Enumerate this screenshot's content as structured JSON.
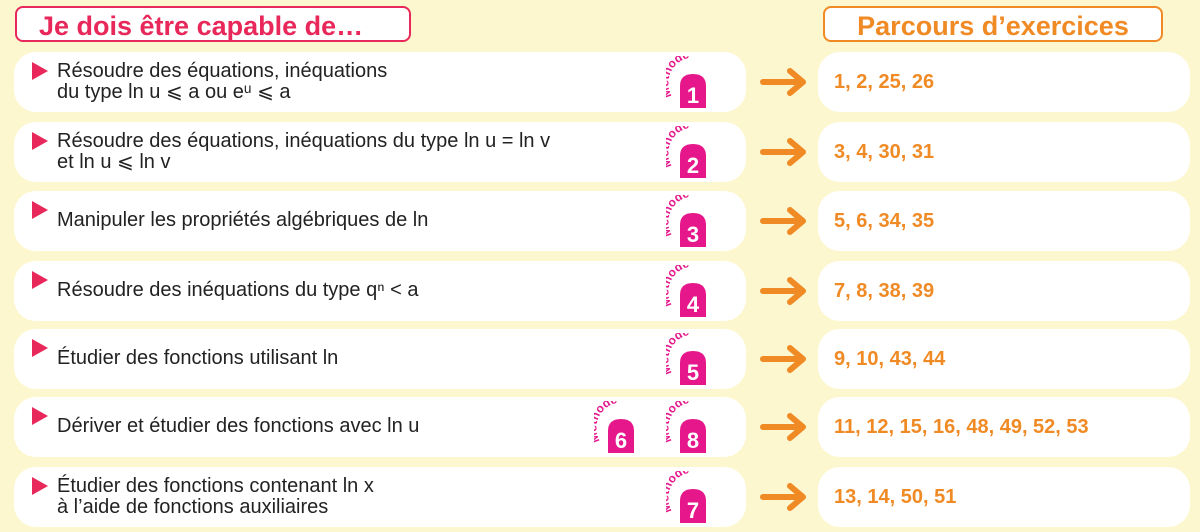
{
  "header": {
    "left_title": "Je dois être capable de…",
    "right_title": "Parcours d’exercices"
  },
  "method_label": "Méthode",
  "colors": {
    "pink": "#e8285a",
    "magenta": "#e5178b",
    "orange": "#f08a25",
    "background": "#fdf7cf"
  },
  "rows": [
    {
      "line1": "Résoudre des équations, inéquations",
      "line2": "du type ln u ⩽ a ou eᵘ ⩽ a",
      "methods": [
        "1"
      ],
      "exercises": "1, 2, 25, 26"
    },
    {
      "line1": "Résoudre des équations, inéquations du type ln u = ln v",
      "line2": "et ln u ⩽ ln v",
      "methods": [
        "2"
      ],
      "exercises": "3, 4, 30, 31"
    },
    {
      "line1": "Manipuler les propriétés algébriques de ln",
      "methods": [
        "3"
      ],
      "exercises": "5, 6, 34, 35"
    },
    {
      "line1": "Résoudre des inéquations du type qⁿ < a",
      "methods": [
        "4"
      ],
      "exercises": "7, 8, 38, 39"
    },
    {
      "line1": "Étudier des fonctions utilisant ln",
      "methods": [
        "5"
      ],
      "exercises": "9, 10, 43, 44"
    },
    {
      "line1": "Dériver et étudier des fonctions avec ln u",
      "methods": [
        "6",
        "8"
      ],
      "exercises": "11, 12, 15, 16, 48, 49, 52, 53"
    },
    {
      "line1": "Étudier des fonctions contenant ln x",
      "line2": "à l’aide de fonctions auxiliaires",
      "methods": [
        "7"
      ],
      "exercises": "13, 14, 50, 51"
    }
  ]
}
